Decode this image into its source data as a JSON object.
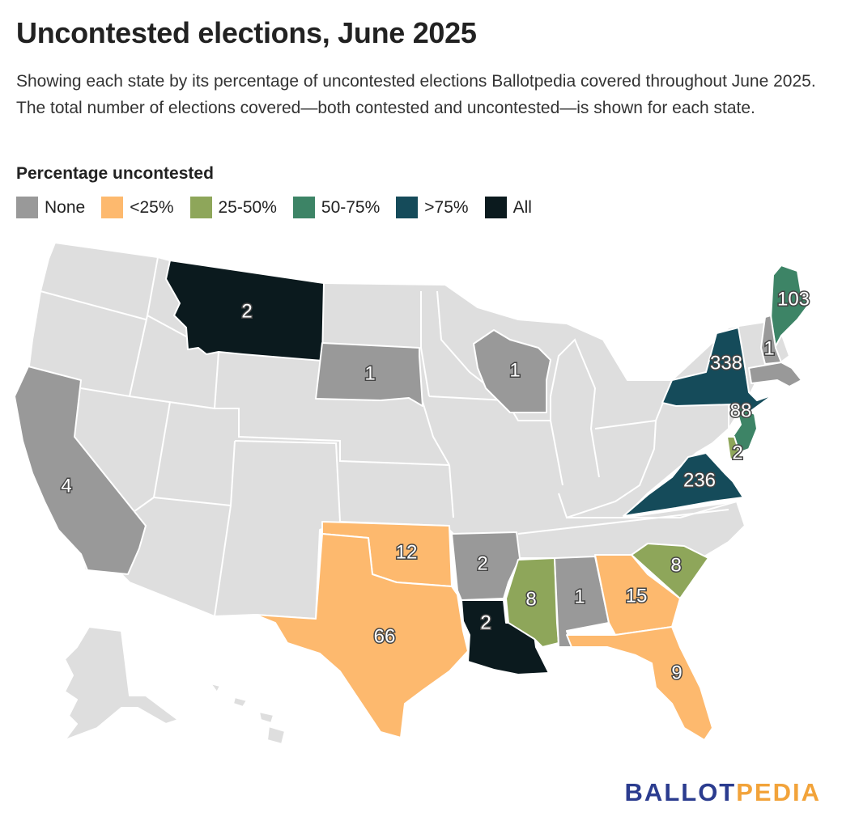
{
  "title": "Uncontested elections, June 2025",
  "subtitle": "Showing each state by its percentage of uncontested elections Ballotpedia covered throughout June 2025. The total number of elections covered—both contested and uncontested—is shown for each state.",
  "legend": {
    "title": "Percentage uncontested",
    "items": [
      {
        "label": "None",
        "color": "#999999"
      },
      {
        "label": "<25%",
        "color": "#fdb96e"
      },
      {
        "label": "25-50%",
        "color": "#8ea65a"
      },
      {
        "label": "50-75%",
        "color": "#3d8466"
      },
      {
        "label": ">75%",
        "color": "#154b5a"
      },
      {
        "label": "All",
        "color": "#0b1a1e"
      }
    ]
  },
  "colors": {
    "no_data": "#dedede",
    "border": "#ffffff"
  },
  "states": [
    {
      "name": "Montana",
      "category": "All",
      "count": "2"
    },
    {
      "name": "South Dakota",
      "category": "None",
      "count": "1"
    },
    {
      "name": "Wisconsin",
      "category": "None",
      "count": "1"
    },
    {
      "name": "California",
      "category": "None",
      "count": "4"
    },
    {
      "name": "Oklahoma",
      "category": "<25%",
      "count": "12"
    },
    {
      "name": "Texas",
      "category": "<25%",
      "count": "66"
    },
    {
      "name": "Arkansas",
      "category": "None",
      "count": "2"
    },
    {
      "name": "Louisiana",
      "category": "All",
      "count": "2"
    },
    {
      "name": "Mississippi",
      "category": "25-50%",
      "count": "8"
    },
    {
      "name": "Alabama",
      "category": "None",
      "count": "1"
    },
    {
      "name": "Georgia",
      "category": "<25%",
      "count": "15"
    },
    {
      "name": "South Carolina",
      "category": "25-50%",
      "count": "8"
    },
    {
      "name": "Florida",
      "category": "<25%",
      "count": "9"
    },
    {
      "name": "Virginia",
      "category": ">75%",
      "count": "236"
    },
    {
      "name": "New York",
      "category": ">75%",
      "count": "338"
    },
    {
      "name": "New Jersey",
      "category": "50-75%",
      "count": "88"
    },
    {
      "name": "Delaware",
      "category": "25-50%",
      "count": "2"
    },
    {
      "name": "Maine",
      "category": "50-75%",
      "count": "103"
    },
    {
      "name": "New Hampshire",
      "category": "None",
      "count": "1"
    },
    {
      "name": "Massachusetts",
      "category": "None",
      "count": ""
    }
  ],
  "brand": {
    "part1": "BALLOT",
    "part2": "PEDIA"
  }
}
